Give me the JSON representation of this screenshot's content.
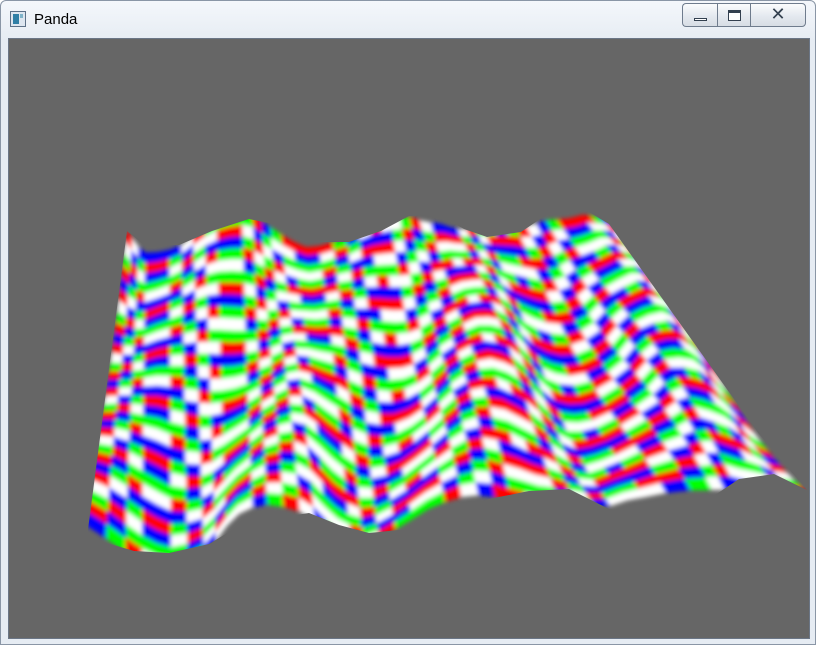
{
  "window": {
    "title": "Panda",
    "icon": "application-window-icon"
  },
  "caption_buttons": {
    "minimize_icon": "minimize-icon",
    "maximize_icon": "maximize-icon",
    "close_icon": "close-icon"
  },
  "viewport": {
    "background_color": "#666666",
    "scene": "wavy-terrain-mesh",
    "palette": [
      "#ff0000",
      "#ffffff",
      "#0000ff",
      "#00ff00"
    ]
  }
}
